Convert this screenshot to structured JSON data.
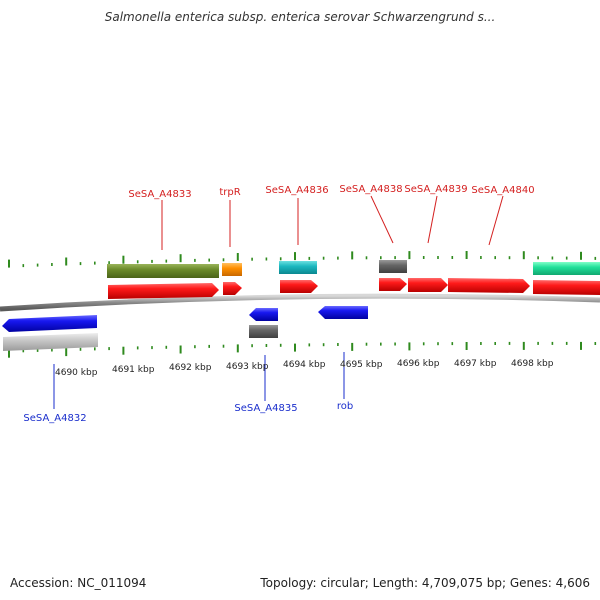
{
  "title": "Salmonella enterica subsp. enterica serovar Schwarzengrund s...",
  "footer": {
    "accession": "Accession: NC_011094",
    "topology": "Topology: circular; Length: 4,709,075 bp; Genes: 4,606"
  },
  "colors": {
    "tick": "#2f8a1e",
    "backbone": "#888888",
    "label_top": "#d42020",
    "label_bottom": "#1a2ecc"
  },
  "scale": {
    "unit": "kbp",
    "labels": [
      "4690 kbp",
      "4691 kbp",
      "4692 kbp",
      "4693 kbp",
      "4694 kbp",
      "4695 kbp",
      "4696 kbp",
      "4697 kbp",
      "4698 kbp"
    ]
  },
  "gene_labels_top": [
    "SeSA_A4833",
    "trpR",
    "SeSA_A4836",
    "SeSA_A4838",
    "SeSA_A4839",
    "SeSA_A4840"
  ],
  "gene_labels_bottom": [
    "SeSA_A4832",
    "SeSA_A4835",
    "rob"
  ]
}
